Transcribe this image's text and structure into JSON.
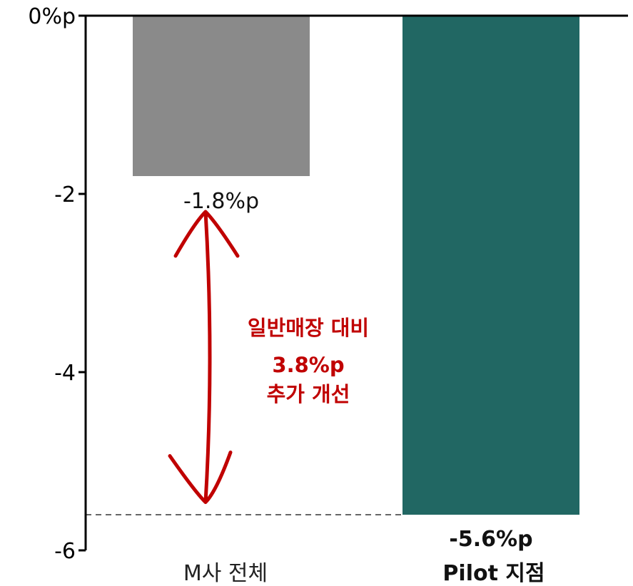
{
  "chart_data": {
    "type": "bar",
    "categories": [
      "M사 전체",
      "Pilot 지점"
    ],
    "values": [
      -1.8,
      -5.6
    ],
    "value_labels": [
      "-1.8%p",
      "-5.6%p"
    ],
    "y_ticks": [
      {
        "value": 0,
        "label": "0%p"
      },
      {
        "value": -2,
        "label": "-2"
      },
      {
        "value": -4,
        "label": "-4"
      },
      {
        "value": -6,
        "label": "-6"
      }
    ],
    "ylim": [
      -6,
      0
    ],
    "grid": false,
    "colors": {
      "bar1": "#8a8a8a",
      "bar2": "#216763",
      "annotation": "#c00000",
      "reference_line": "#666666"
    },
    "reference_line_value": -5.6,
    "annotation": {
      "lines": [
        "일반매장 대비",
        "3.8%p",
        "추가 개선"
      ],
      "difference": 3.8,
      "from_value": -2.4,
      "to_value": -5.3
    }
  }
}
